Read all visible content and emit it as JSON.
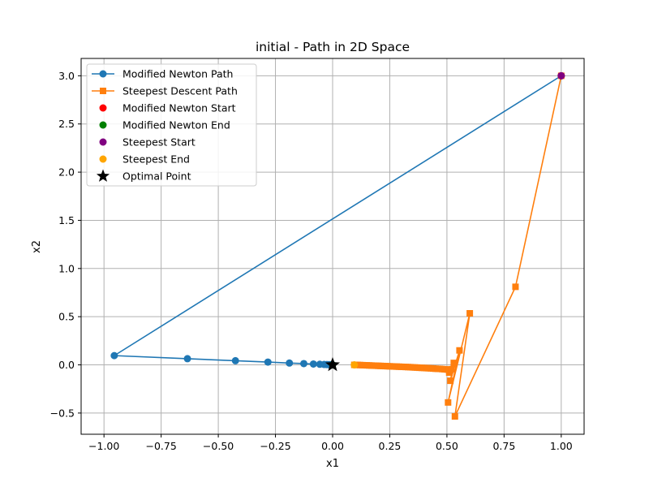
{
  "chart_data": {
    "type": "line",
    "title": "initial - Path in 2D Space",
    "xlabel": "x1",
    "ylabel": "x2",
    "xlim": [
      -1.1,
      1.1
    ],
    "ylim": [
      -0.72,
      3.18
    ],
    "grid": true,
    "legend_position": "top-left",
    "xticks": [
      -1.0,
      -0.75,
      -0.5,
      -0.25,
      0.0,
      0.25,
      0.5,
      0.75,
      1.0
    ],
    "xtick_labels": [
      "−1.00",
      "−0.75",
      "−0.50",
      "−0.25",
      "0.00",
      "0.25",
      "0.50",
      "0.75",
      "1.00"
    ],
    "yticks": [
      -0.5,
      0.0,
      0.5,
      1.0,
      1.5,
      2.0,
      2.5,
      3.0
    ],
    "ytick_labels": [
      "−0.5",
      "0.0",
      "0.5",
      "1.0",
      "1.5",
      "2.0",
      "2.5",
      "3.0"
    ],
    "series": [
      {
        "name": "Modified Newton Path",
        "kind": "line-marker",
        "marker": "circle",
        "color": "#1f77b4",
        "x": [
          1.0,
          -0.955,
          -0.635,
          -0.425,
          -0.283,
          -0.189,
          -0.126,
          -0.084,
          -0.056,
          -0.037,
          -0.025,
          -0.016,
          -0.011,
          -0.007,
          -0.005,
          -0.003,
          -0.002,
          -0.001
        ],
        "y": [
          3.0,
          0.096,
          0.064,
          0.043,
          0.029,
          0.019,
          0.013,
          0.009,
          0.006,
          0.004,
          0.003,
          0.002,
          0.001,
          0.001,
          0.0,
          0.0,
          0.0,
          0.0
        ]
      },
      {
        "name": "Steepest Descent Path",
        "kind": "line-marker",
        "marker": "square",
        "color": "#ff7f0e",
        "x": [
          1.0,
          0.8,
          0.535,
          0.6,
          0.505,
          0.555,
          0.515,
          0.53,
          0.51,
          0.52,
          0.508,
          0.5,
          0.49,
          0.48,
          0.47,
          0.46,
          0.45,
          0.44,
          0.43,
          0.42,
          0.41,
          0.4,
          0.39,
          0.38,
          0.37,
          0.36,
          0.35,
          0.34,
          0.33,
          0.32,
          0.31,
          0.3,
          0.29,
          0.28,
          0.27,
          0.26,
          0.25,
          0.24,
          0.23,
          0.22,
          0.21,
          0.2,
          0.19,
          0.18,
          0.17,
          0.16,
          0.15,
          0.14,
          0.13,
          0.12,
          0.11,
          0.1,
          0.095
        ],
        "y": [
          3.0,
          0.81,
          -0.535,
          0.535,
          -0.39,
          0.15,
          -0.165,
          0.02,
          -0.08,
          -0.045,
          -0.05,
          -0.048,
          -0.046,
          -0.044,
          -0.042,
          -0.041,
          -0.04,
          -0.038,
          -0.036,
          -0.035,
          -0.034,
          -0.032,
          -0.031,
          -0.03,
          -0.028,
          -0.027,
          -0.026,
          -0.024,
          -0.023,
          -0.022,
          -0.021,
          -0.02,
          -0.019,
          -0.018,
          -0.017,
          -0.016,
          -0.015,
          -0.014,
          -0.013,
          -0.012,
          -0.011,
          -0.01,
          -0.009,
          -0.008,
          -0.007,
          -0.006,
          -0.005,
          -0.004,
          -0.003,
          -0.002,
          -0.001,
          0.0,
          0.0
        ]
      },
      {
        "name": "Modified Newton Start",
        "kind": "scatter",
        "marker": "circle",
        "color": "#ff0000",
        "x": [
          1.0
        ],
        "y": [
          3.0
        ]
      },
      {
        "name": "Modified Newton End",
        "kind": "scatter",
        "marker": "circle",
        "color": "#008000",
        "x": [
          0.0
        ],
        "y": [
          0.0
        ]
      },
      {
        "name": "Steepest Start",
        "kind": "scatter",
        "marker": "circle",
        "color": "#800080",
        "x": [
          1.0
        ],
        "y": [
          3.0
        ]
      },
      {
        "name": "Steepest End",
        "kind": "scatter",
        "marker": "circle",
        "color": "#ffa500",
        "x": [
          0.095
        ],
        "y": [
          0.0
        ]
      },
      {
        "name": "Optimal Point",
        "kind": "scatter",
        "marker": "star",
        "color": "#000000",
        "x": [
          0.0
        ],
        "y": [
          0.0
        ]
      }
    ]
  }
}
